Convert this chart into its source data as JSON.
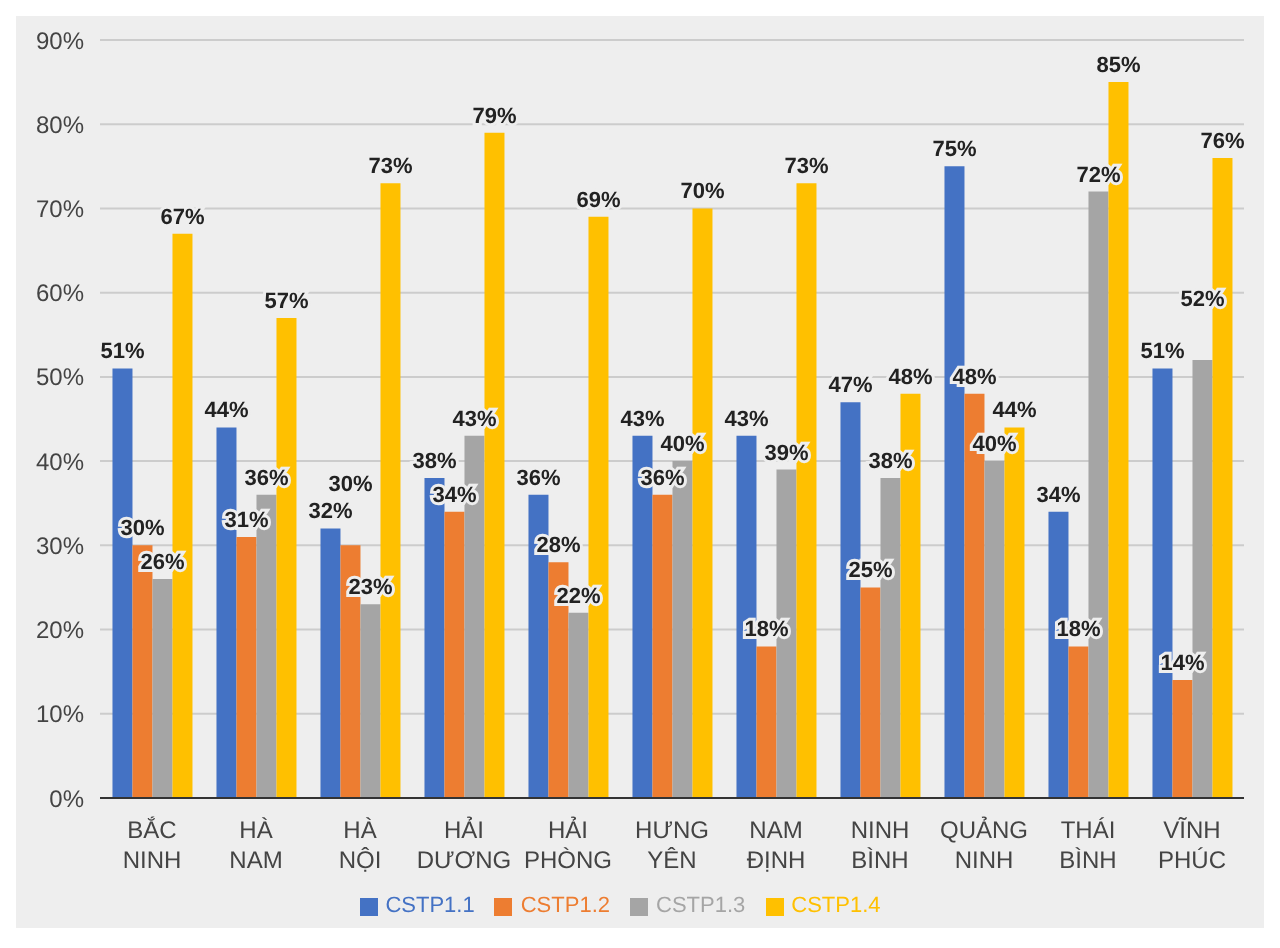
{
  "chart_data": {
    "type": "bar",
    "categories": [
      "BẮC NINH",
      "HÀ NAM",
      "HÀ NỘI",
      "HẢI DƯƠNG",
      "HẢI PHÒNG",
      "HƯNG YÊN",
      "NAM ĐỊNH",
      "NINH BÌNH",
      "QUẢNG NINH",
      "THÁI BÌNH",
      "VĨNH PHÚC"
    ],
    "series": [
      {
        "name": "CSTP1.1",
        "color": "#4472c4",
        "values": [
          51,
          44,
          32,
          38,
          36,
          43,
          43,
          47,
          75,
          34,
          51
        ],
        "value_labels": [
          "51%",
          "44%",
          "32%",
          "38%",
          "36%",
          "43%",
          "43%",
          "47%",
          "75%",
          "34%",
          "51%"
        ]
      },
      {
        "name": "CSTP1.2",
        "color": "#ed7d31",
        "values": [
          30,
          31,
          30,
          34,
          28,
          36,
          18,
          25,
          48,
          18,
          14
        ],
        "value_labels": [
          "30%",
          "31%",
          "30%",
          "34%",
          "28%",
          "36%",
          "18%",
          "25%",
          "48%",
          "18%",
          "14%"
        ]
      },
      {
        "name": "CSTP1.3",
        "color": "#a5a5a5",
        "values": [
          26,
          36,
          23,
          43,
          22,
          40,
          39,
          38,
          40,
          72,
          52
        ],
        "value_labels": [
          "26%",
          "36%",
          "23%",
          "43%",
          "22%",
          "40%",
          "39%",
          "38%",
          "40%",
          "72%",
          "52%"
        ]
      },
      {
        "name": "CSTP1.4",
        "color": "#ffc000",
        "values": [
          67,
          57,
          73,
          79,
          69,
          70,
          73,
          48,
          44,
          85,
          76
        ],
        "value_labels": [
          "67%",
          "57%",
          "73%",
          "79%",
          "69%",
          "70%",
          "73%",
          "48%",
          "44%",
          "85%",
          "76%"
        ]
      }
    ],
    "ylim": [
      0,
      90
    ],
    "yticks": [
      {
        "value": 0,
        "label": "0%"
      },
      {
        "value": 10,
        "label": "10%"
      },
      {
        "value": 20,
        "label": "20%"
      },
      {
        "value": 30,
        "label": "30%"
      },
      {
        "value": 40,
        "label": "40%"
      },
      {
        "value": 50,
        "label": "50%"
      },
      {
        "value": 60,
        "label": "60%"
      },
      {
        "value": 70,
        "label": "70%"
      },
      {
        "value": 80,
        "label": "80%"
      },
      {
        "value": 90,
        "label": "90%"
      }
    ],
    "grid": "y",
    "legend": "bottom"
  }
}
